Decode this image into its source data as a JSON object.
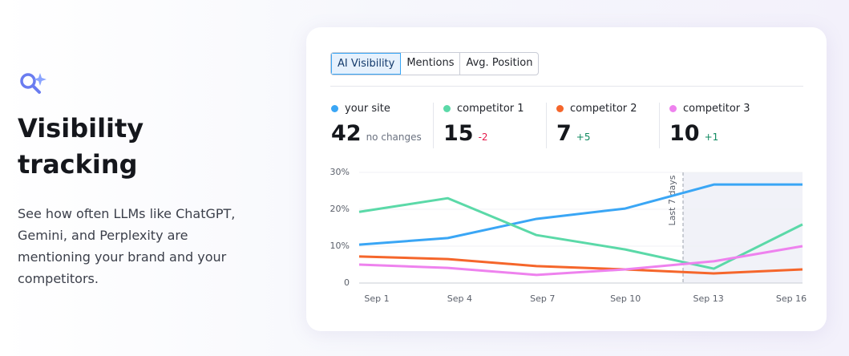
{
  "heading": "Visibility tracking",
  "description": "See how often LLMs like ChatGPT, Gemini, and Perplexity are mentioning your brand and your competitors.",
  "tabs": [
    "AI Visibility",
    "Mentions",
    "Avg. Position"
  ],
  "stats": [
    {
      "value": "42",
      "delta": "no changes",
      "delta_color": "#6b7280"
    },
    {
      "value": "15",
      "delta": "-2",
      "delta_color": "#e5194a"
    },
    {
      "value": "7",
      "delta": "+5",
      "delta_color": "#0f8a5f"
    },
    {
      "value": "10",
      "delta": "+1",
      "delta_color": "#0f8a5f"
    }
  ],
  "chart_data": {
    "type": "line",
    "categories": [
      "Sep 1",
      "Sep 4",
      "Sep 7",
      "Sep 10",
      "Sep 13",
      "Sep 16"
    ],
    "series": [
      {
        "name": "your site",
        "color": "#3aa6f5",
        "values": [
          10.4,
          12.2,
          17.4,
          20.2,
          26.7,
          26.7
        ]
      },
      {
        "name": "competitor 1",
        "color": "#5bd9a8",
        "values": [
          19.3,
          23,
          13,
          9.1,
          3.9,
          15.9
        ]
      },
      {
        "name": "competitor 2",
        "color": "#f5662b",
        "values": [
          7.2,
          6.5,
          4.6,
          3.7,
          2.6,
          3.7
        ]
      },
      {
        "name": "competitor 3",
        "color": "#ee82ee",
        "values": [
          5,
          4.1,
          2.2,
          3.7,
          5.9,
          10
        ]
      }
    ],
    "ylim": [
      0,
      30
    ],
    "yticks": [
      0,
      {
        "value": 10,
        "label": "10%"
      },
      {
        "value": 20,
        "label": "20%"
      },
      {
        "value": 30,
        "label": "30%"
      }
    ],
    "grid": true,
    "annotation": "Last 7 days"
  }
}
